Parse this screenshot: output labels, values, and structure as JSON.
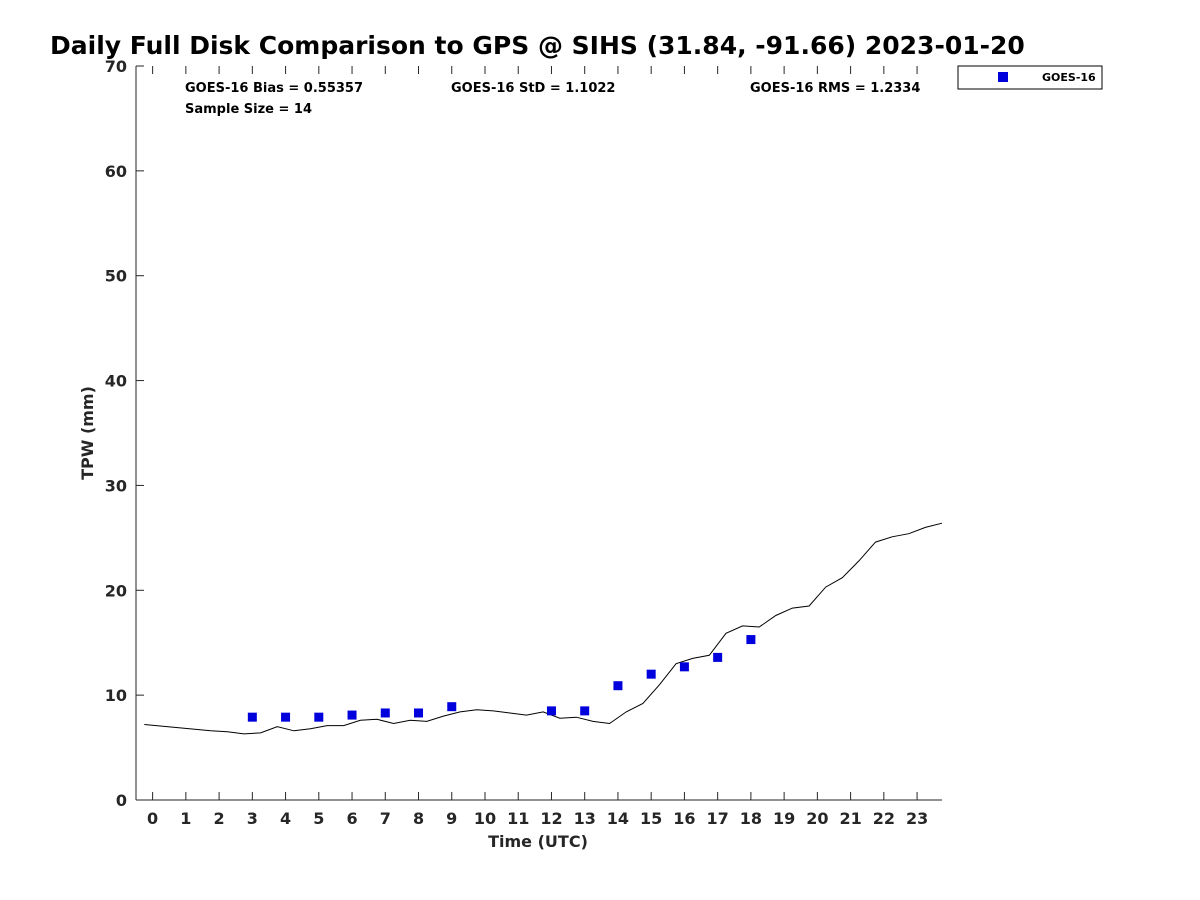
{
  "chart_data": {
    "type": "scatter",
    "title": "Daily Full Disk Comparison to GPS @ SIHS (31.84, -91.66) 2023-01-20",
    "xlabel": "Time (UTC)",
    "ylabel": "TPW (mm)",
    "xlim": [
      -0.5,
      23.75
    ],
    "ylim": [
      0,
      70
    ],
    "x_ticks": [
      "0",
      "1",
      "2",
      "3",
      "4",
      "5",
      "6",
      "7",
      "8",
      "9",
      "10",
      "11",
      "12",
      "13",
      "14",
      "15",
      "16",
      "17",
      "18",
      "19",
      "20",
      "21",
      "22",
      "23"
    ],
    "y_ticks": [
      "0",
      "10",
      "20",
      "30",
      "40",
      "50",
      "60",
      "70"
    ],
    "grid": false,
    "legend": {
      "placement": "top-right-outside",
      "entries": [
        "GOES-16"
      ]
    },
    "stats": {
      "bias": "GOES-16 Bias = 0.55357",
      "std": "GOES-16 StD = 1.1022",
      "rms": "GOES-16 RMS = 1.2334",
      "sample_size": "Sample Size = 14"
    },
    "series": [
      {
        "name": "GOES-16",
        "kind": "markers",
        "color": "#0000dd",
        "x": [
          3,
          4,
          5,
          6,
          7,
          8,
          9,
          12,
          13,
          14,
          15,
          16,
          17,
          18
        ],
        "y": [
          7.9,
          7.9,
          7.9,
          8.1,
          8.3,
          8.3,
          8.9,
          8.5,
          8.5,
          10.9,
          12.0,
          12.7,
          13.6,
          15.3
        ]
      },
      {
        "kind": "line",
        "color": "#000000",
        "x": [
          -0.25,
          0.75,
          1.75,
          2.25,
          2.75,
          3.25,
          3.75,
          4.25,
          4.75,
          5.25,
          5.75,
          6.25,
          6.75,
          7.25,
          7.75,
          8.25,
          8.75,
          9.25,
          9.75,
          10.25,
          10.75,
          11.25,
          11.75,
          12.25,
          12.75,
          13.25,
          13.75,
          14.25,
          14.75,
          15.25,
          15.75,
          16.25,
          16.75,
          17.25,
          17.75,
          18.25,
          18.75,
          19.25,
          19.75,
          20.25,
          20.75,
          21.25,
          21.75,
          22.25,
          22.75,
          23.25,
          23.75
        ],
        "y": [
          7.2,
          6.9,
          6.6,
          6.5,
          6.3,
          6.4,
          7.0,
          6.6,
          6.8,
          7.1,
          7.1,
          7.6,
          7.7,
          7.3,
          7.6,
          7.5,
          8.0,
          8.4,
          8.6,
          8.5,
          8.3,
          8.1,
          8.4,
          7.8,
          7.9,
          7.5,
          7.3,
          8.4,
          9.2,
          11.0,
          13.0,
          13.5,
          13.8,
          15.9,
          16.6,
          16.5,
          17.6,
          18.3,
          18.5,
          20.3,
          21.2,
          22.8,
          24.6,
          25.1,
          25.4,
          26.0,
          26.4
        ]
      }
    ]
  }
}
